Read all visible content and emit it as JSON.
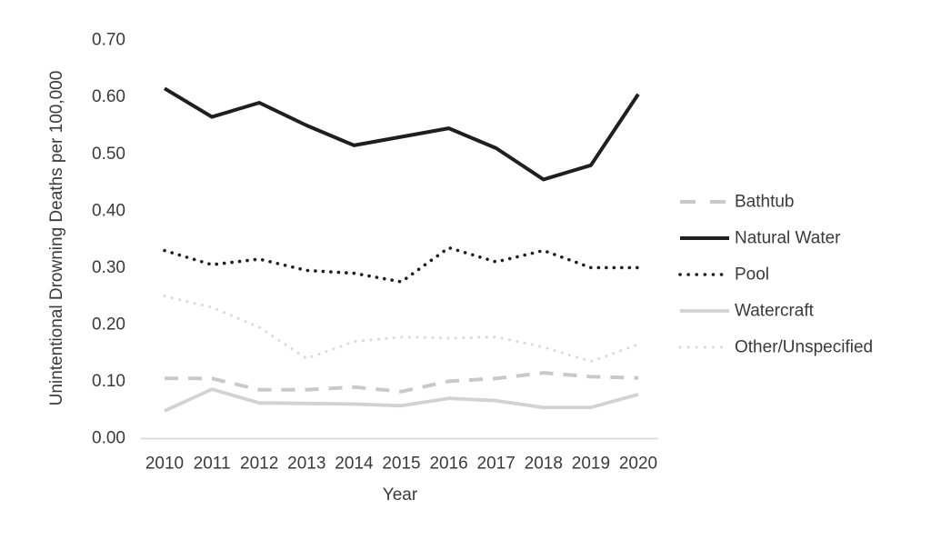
{
  "figure": {
    "background": "#ffffff",
    "text_color": "#3a3a3a",
    "axis_line_color": "#d6d6d6"
  },
  "chart_data": {
    "type": "line",
    "title": "",
    "xlabel": "Year",
    "ylabel": "Unintentional Drowning Deaths per 100,000",
    "x": [
      2010,
      2011,
      2012,
      2013,
      2014,
      2015,
      2016,
      2017,
      2018,
      2019,
      2020
    ],
    "xtick_labels": [
      "2010",
      "2011",
      "2012",
      "2013",
      "2014",
      "2015",
      "2016",
      "2017",
      "2018",
      "2019",
      "2020"
    ],
    "ylim": [
      0.0,
      0.7
    ],
    "ytick_labels": [
      "0.00",
      "0.10",
      "0.20",
      "0.30",
      "0.40",
      "0.50",
      "0.60",
      "0.70"
    ],
    "ytick_values": [
      0.0,
      0.1,
      0.2,
      0.3,
      0.4,
      0.5,
      0.6,
      0.7
    ],
    "grid": false,
    "legend_position": "right",
    "series": [
      {
        "name": "Bathtub",
        "style": "dashed",
        "color": "#c9c9c9",
        "width": 4,
        "values": [
          0.105,
          0.105,
          0.085,
          0.085,
          0.09,
          0.082,
          0.1,
          0.105,
          0.115,
          0.108,
          0.106
        ]
      },
      {
        "name": "Natural Water",
        "style": "solid",
        "color": "#1f1f1f",
        "width": 4,
        "values": [
          0.615,
          0.565,
          0.59,
          0.55,
          0.515,
          0.53,
          0.545,
          0.51,
          0.455,
          0.48,
          0.605
        ]
      },
      {
        "name": "Pool",
        "style": "dotted",
        "color": "#1f1f1f",
        "width": 3.6,
        "values": [
          0.33,
          0.305,
          0.315,
          0.295,
          0.29,
          0.275,
          0.335,
          0.31,
          0.33,
          0.3,
          0.3
        ]
      },
      {
        "name": "Watercraft",
        "style": "solid",
        "color": "#d2d2d2",
        "width": 3.8,
        "values": [
          0.048,
          0.086,
          0.062,
          0.061,
          0.06,
          0.057,
          0.07,
          0.066,
          0.054,
          0.054,
          0.077
        ]
      },
      {
        "name": "Other/Unspecified",
        "style": "dotted",
        "color": "#d9d9d9",
        "width": 3,
        "values": [
          0.25,
          0.23,
          0.195,
          0.14,
          0.17,
          0.178,
          0.176,
          0.178,
          0.16,
          0.135,
          0.165
        ]
      }
    ]
  }
}
